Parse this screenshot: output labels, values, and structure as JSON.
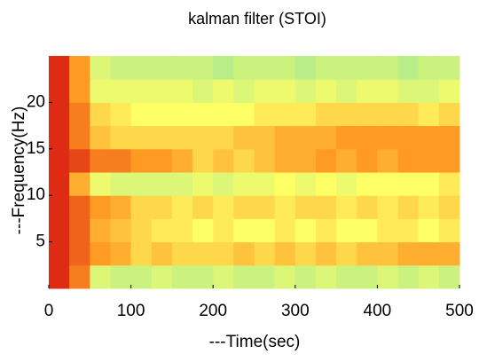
{
  "chart_data": {
    "type": "heatmap",
    "title": "kalman filter  (STOI)",
    "xlabel": "---Time(sec)",
    "ylabel": "---Frequency(Hz)",
    "xbins": [
      0,
      25,
      50,
      75,
      100,
      125,
      150,
      175,
      200,
      225,
      250,
      275,
      300,
      325,
      350,
      375,
      400,
      425,
      450,
      475,
      500
    ],
    "ybins": [
      0,
      2.5,
      5,
      7.5,
      10,
      12.5,
      15,
      17.5,
      20,
      22.5,
      25
    ],
    "values": [
      [
        0.95,
        0.8,
        0.4,
        0.35,
        0.35,
        0.4,
        0.35,
        0.35,
        0.4,
        0.35,
        0.35,
        0.4,
        0.35,
        0.4,
        0.35,
        0.35,
        0.4,
        0.35,
        0.4,
        0.35
      ],
      [
        0.95,
        0.85,
        0.75,
        0.7,
        0.6,
        0.65,
        0.6,
        0.6,
        0.6,
        0.65,
        0.6,
        0.65,
        0.6,
        0.65,
        0.6,
        0.65,
        0.65,
        0.7,
        0.7,
        0.7
      ],
      [
        0.95,
        0.85,
        0.7,
        0.65,
        0.6,
        0.55,
        0.55,
        0.5,
        0.55,
        0.5,
        0.5,
        0.55,
        0.5,
        0.55,
        0.5,
        0.5,
        0.55,
        0.55,
        0.5,
        0.55
      ],
      [
        0.95,
        0.85,
        0.75,
        0.7,
        0.6,
        0.6,
        0.55,
        0.6,
        0.55,
        0.6,
        0.6,
        0.55,
        0.6,
        0.6,
        0.55,
        0.6,
        0.55,
        0.6,
        0.55,
        0.6
      ],
      [
        0.95,
        0.7,
        0.45,
        0.4,
        0.4,
        0.4,
        0.4,
        0.45,
        0.4,
        0.45,
        0.45,
        0.5,
        0.45,
        0.5,
        0.45,
        0.5,
        0.5,
        0.5,
        0.5,
        0.55
      ],
      [
        0.95,
        0.9,
        0.8,
        0.8,
        0.75,
        0.75,
        0.7,
        0.6,
        0.65,
        0.6,
        0.65,
        0.7,
        0.7,
        0.75,
        0.7,
        0.75,
        0.7,
        0.75,
        0.75,
        0.75
      ],
      [
        0.95,
        0.8,
        0.65,
        0.6,
        0.6,
        0.6,
        0.6,
        0.6,
        0.6,
        0.65,
        0.65,
        0.7,
        0.7,
        0.7,
        0.75,
        0.75,
        0.75,
        0.75,
        0.75,
        0.75
      ],
      [
        0.95,
        0.8,
        0.6,
        0.55,
        0.5,
        0.5,
        0.5,
        0.5,
        0.5,
        0.5,
        0.55,
        0.55,
        0.55,
        0.6,
        0.6,
        0.6,
        0.6,
        0.6,
        0.55,
        0.6
      ],
      [
        0.95,
        0.75,
        0.45,
        0.45,
        0.45,
        0.45,
        0.45,
        0.4,
        0.45,
        0.4,
        0.45,
        0.45,
        0.4,
        0.45,
        0.4,
        0.45,
        0.45,
        0.4,
        0.4,
        0.45
      ],
      [
        0.95,
        0.75,
        0.4,
        0.35,
        0.35,
        0.35,
        0.35,
        0.35,
        0.3,
        0.35,
        0.35,
        0.35,
        0.3,
        0.35,
        0.35,
        0.35,
        0.35,
        0.3,
        0.35,
        0.35
      ]
    ],
    "zlim": [
      0,
      1
    ],
    "colorscale": [
      "#80d8c0",
      "#a8e890",
      "#ffff66",
      "#ff9a22",
      "#d61010"
    ],
    "xlim": [
      0,
      500
    ],
    "xticks": [
      0,
      100,
      200,
      300,
      400,
      500
    ],
    "ylim": [
      0,
      25
    ],
    "yticks": [
      5,
      10,
      15,
      20
    ],
    "grid": false
  }
}
